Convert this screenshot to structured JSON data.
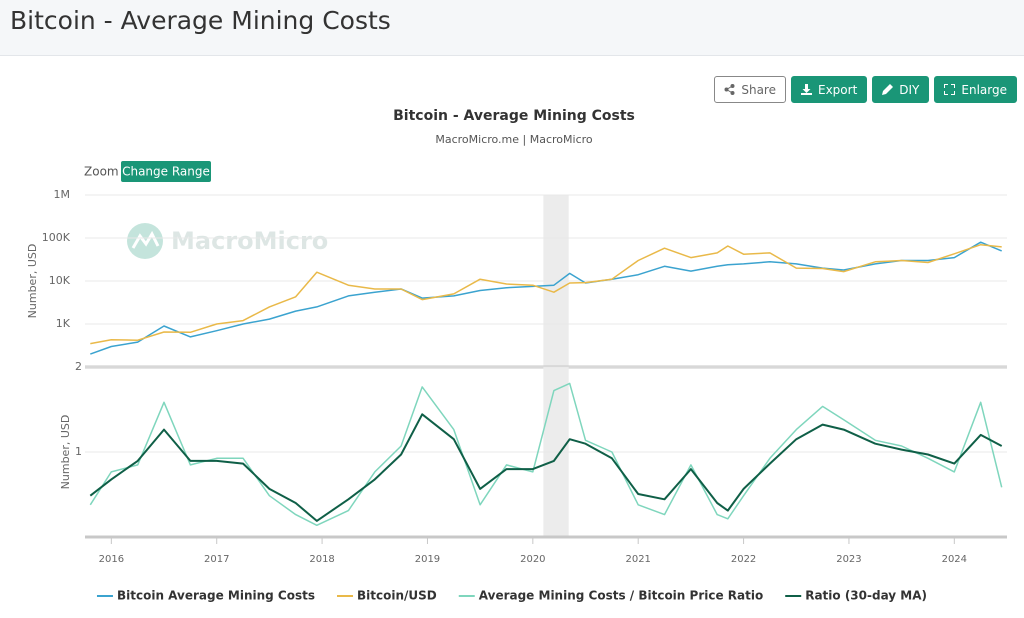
{
  "header": {
    "title": "Bitcoin - Average Mining Costs"
  },
  "buttons": [
    "Share",
    "Export",
    "DIY",
    "Enlarge"
  ],
  "zoom": {
    "label": "Zoom",
    "button": "Change Range"
  },
  "watermark": "MacroMicro",
  "chart_data": [
    {
      "type": "line",
      "title": "Bitcoin - Average Mining Costs",
      "subtitle": "MacroMicro.me | MacroMicro",
      "y_label": "Number, USD",
      "log_scale": true,
      "grid": true,
      "highlight": [
        2020.1,
        2020.34
      ],
      "x": [
        2015.8,
        2016.0,
        2016.25,
        2016.5,
        2016.75,
        2017.0,
        2017.25,
        2017.5,
        2017.75,
        2017.95,
        2018.25,
        2018.5,
        2018.75,
        2018.95,
        2019.25,
        2019.5,
        2019.75,
        2020.0,
        2020.2,
        2020.35,
        2020.5,
        2020.75,
        2021.0,
        2021.25,
        2021.5,
        2021.75,
        2021.85,
        2022.0,
        2022.25,
        2022.5,
        2022.75,
        2022.95,
        2023.25,
        2023.5,
        2023.75,
        2024.0,
        2024.25,
        2024.45
      ],
      "xlim": [
        2015.75,
        2024.5
      ],
      "ylim": [
        100,
        1000000
      ],
      "yticks": [
        {
          "value": 1000,
          "label": "1K"
        },
        {
          "value": 10000,
          "label": "10K"
        },
        {
          "value": 100000,
          "label": "100K"
        },
        {
          "value": 1000000,
          "label": "1M"
        }
      ],
      "series": [
        {
          "name": "Bitcoin Average Mining Costs",
          "color": "#3ba3cf",
          "values": [
            200,
            300,
            380,
            900,
            500,
            700,
            1000,
            1300,
            2000,
            2500,
            4500,
            5500,
            6500,
            4000,
            4500,
            6000,
            7000,
            7500,
            8000,
            15000,
            9000,
            11000,
            14000,
            22000,
            17000,
            22000,
            24000,
            25000,
            28000,
            25000,
            20000,
            18000,
            25000,
            30000,
            30000,
            35000,
            80000,
            50000
          ]
        },
        {
          "name": "Bitcoin/USD",
          "color": "#e9b949",
          "values": [
            350,
            430,
            420,
            650,
            640,
            1000,
            1200,
            2500,
            4300,
            16000,
            8000,
            6500,
            6500,
            3700,
            5000,
            11000,
            8500,
            8000,
            5500,
            9000,
            9200,
            11000,
            30000,
            58000,
            35000,
            45000,
            65000,
            42000,
            45000,
            20000,
            19500,
            16500,
            28000,
            30000,
            27000,
            43000,
            70000,
            62000
          ]
        }
      ]
    },
    {
      "type": "line",
      "y_label": "Number, USD",
      "log_scale": true,
      "grid": true,
      "highlight": [
        2020.1,
        2020.34
      ],
      "x": [
        2015.8,
        2016.0,
        2016.25,
        2016.5,
        2016.75,
        2017.0,
        2017.25,
        2017.5,
        2017.75,
        2017.95,
        2018.25,
        2018.5,
        2018.75,
        2018.95,
        2019.25,
        2019.5,
        2019.75,
        2020.0,
        2020.2,
        2020.35,
        2020.5,
        2020.75,
        2021.0,
        2021.25,
        2021.5,
        2021.75,
        2021.85,
        2022.0,
        2022.25,
        2022.5,
        2022.75,
        2022.95,
        2023.25,
        2023.5,
        2023.75,
        2024.0,
        2024.25,
        2024.45
      ],
      "xlim": [
        2015.75,
        2024.5
      ],
      "xticks": [
        2016,
        2017,
        2018,
        2019,
        2020,
        2021,
        2022,
        2023,
        2024
      ],
      "ylim": [
        0.5,
        2
      ],
      "yticks": [
        1,
        2
      ],
      "series": [
        {
          "name": "Average Mining Costs / Bitcoin Price Ratio",
          "color": "#7fd6bd",
          "values": [
            0.65,
            0.85,
            0.9,
            1.5,
            0.9,
            0.95,
            0.95,
            0.7,
            0.6,
            0.55,
            0.62,
            0.85,
            1.05,
            1.7,
            1.2,
            0.65,
            0.9,
            0.85,
            1.65,
            1.75,
            1.1,
            1.0,
            0.65,
            0.6,
            0.9,
            0.6,
            0.58,
            0.7,
            0.95,
            1.2,
            1.45,
            1.3,
            1.1,
            1.05,
            0.95,
            0.85,
            1.5,
            0.75
          ]
        },
        {
          "name": "Ratio (30-day MA)",
          "color": "#0f5f47",
          "values": [
            0.7,
            0.8,
            0.93,
            1.2,
            0.93,
            0.93,
            0.91,
            0.74,
            0.66,
            0.57,
            0.68,
            0.8,
            0.98,
            1.36,
            1.11,
            0.74,
            0.87,
            0.87,
            0.93,
            1.11,
            1.07,
            0.95,
            0.71,
            0.68,
            0.87,
            0.66,
            0.62,
            0.74,
            0.91,
            1.11,
            1.25,
            1.2,
            1.07,
            1.02,
            0.98,
            0.91,
            1.15,
            1.05
          ]
        }
      ]
    }
  ]
}
